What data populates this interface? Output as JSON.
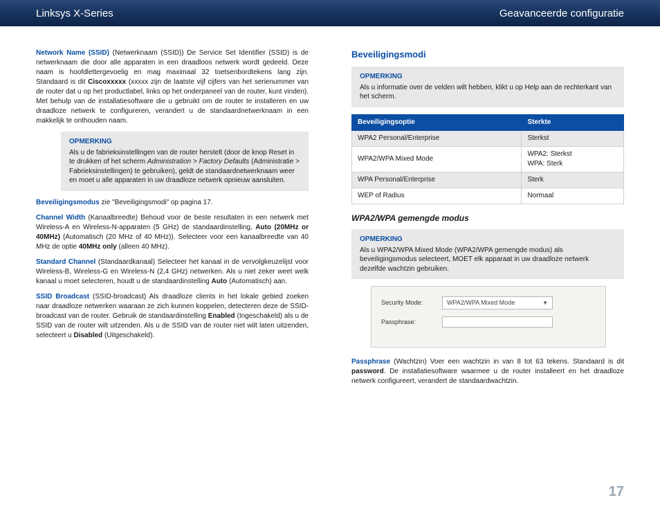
{
  "header": {
    "left": "Linksys X-Series",
    "right": "Geavanceerde configuratie"
  },
  "page_number": "17",
  "left": {
    "p1": {
      "term": "Network Name (SSID)",
      "text": " (Netwerknaam (SSID)) De Service Set Identifier (SSID) is de netwerknaam die door alle apparaten in een draadloos netwerk wordt gedeeld. Deze naam is hoofdlettergevoelig en mag maximaal 32 toetsenbordtekens lang zijn. Standaard is dit ",
      "bold1": "Ciscoxxxxx",
      "text2": " (xxxxx zijn de laatste vijf cijfers van het serienummer van de router dat u op het productlabel, links op het onderpaneel van de router, kunt vinden). Met behulp van de installatiesoftware die u gebruikt om de router te installeren en uw draadloze netwerk te configureren, verandert u de standaardnetwerknaam in een makkelijk te onthouden naam."
    },
    "note1": {
      "title": "OPMERKING",
      "body1": "Als u de fabrieksinstellingen van de router herstelt (door de knop Reset in te drukken of het scherm ",
      "ital": "Administration > Factory Defaults",
      "body2": " (Administratie > Fabrieksinstellingen) te gebruiken), geldt de standaardnetwerknaam weer en moet u alle apparaten in uw draadloze netwerk opnieuw aansluiten."
    },
    "p2": {
      "term": "Beveiligingsmodus",
      "text": "   zie \"Beveiligingsmodi\" op pagina 17."
    },
    "p3": {
      "term": "Channel Width",
      "text": " (Kanaalbreedte) Behoud voor de beste resultaten in een netwerk met Wireless-A en Wireless-N-apparaten (5 GHz) de standaardinstelling, ",
      "bold1": "Auto (20MHz or 40MHz)",
      "text2": " (Automatisch (20 MHz of 40 MHz)). Selecteer voor een kanaalbreedte van 40 MHz de optie ",
      "bold2": "40MHz only",
      "text3": " (alleen 40 MHz)."
    },
    "p4": {
      "term": "Standard Channel",
      "text": " (Standaardkanaal)  Selecteer het kanaal in de vervolgkeuzelijst voor Wireless-B, Wireless-G en Wireless-N (2,4 GHz) netwerken. Als u niet zeker weet welk kanaal u moet selecteren, houdt u de standaardinstelling ",
      "bold1": "Auto",
      "text2": " (Automatisch) aan."
    },
    "p5": {
      "term": "SSID Broadcast",
      "text": " (SSID-broadcast)  Als draadloze clients in het lokale gebied zoeken naar draadloze netwerken waaraan ze zich kunnen koppelen, detecteren deze de SSID-broadcast van de router. Gebruik de standaardinstelling ",
      "bold1": "Enabled",
      "text2": " (Ingeschakeld) als u de SSID van de router wilt uitzenden. Als u de SSID van de router niet wilt laten uitzenden, selecteert u ",
      "bold2": "Disabled",
      "text3": " (Uitgeschakeld)."
    }
  },
  "right": {
    "heading": "Beveiligingsmodi",
    "note1": {
      "title": "OPMERKING",
      "body": "Als u informatie over de velden wilt hebben, klikt u op Help aan de rechterkant van het scherm."
    },
    "table": {
      "h1": "Beveiligingsoptie",
      "h2": "Sterkte",
      "rows": [
        [
          "WPA2 Personal/Enterprise",
          "Sterkst"
        ],
        [
          "WPA2/WPA Mixed Mode",
          "WPA2: Sterkst\nWPA: Sterk"
        ],
        [
          "WPA Personal/Enterprise",
          "Sterk"
        ],
        [
          "WEP of Radius",
          "Normaal"
        ]
      ]
    },
    "subheading": "WPA2/WPA gemengde modus",
    "note2": {
      "title": "OPMERKING",
      "body": "Als u WPA2/WPA Mixed Mode (WPA2/WPA gemengde modus) als beveiligingsmodus selecteert, MOET elk apparaat in uw draadloze netwerk dezelfde wachtzin gebruiken."
    },
    "ui": {
      "sec_label": "Security Mode:",
      "sec_value": "WPA2/WPA Mixed Mode",
      "pass_label": "Passphrase:"
    },
    "p_pass": {
      "term": "Passphrase",
      "text": "  (Wachtzin)  Voer een wachtzin in van 8 tot 63 tekens. Standaard is dit ",
      "bold1": "password",
      "text2": ". De installatiesoftware waarmee u de router installeert en het draadloze netwerk configureert, verandert de standaardwachtzin."
    }
  }
}
